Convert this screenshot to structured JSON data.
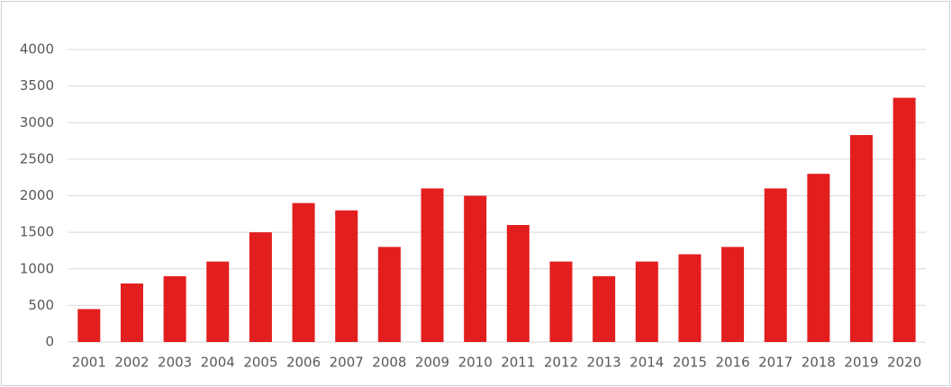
{
  "chart_data": {
    "type": "bar",
    "categories": [
      "2001",
      "2002",
      "2003",
      "2004",
      "2005",
      "2006",
      "2007",
      "2008",
      "2009",
      "2010",
      "2011",
      "2012",
      "2013",
      "2014",
      "2015",
      "2016",
      "2017",
      "2018",
      "2019",
      "2020"
    ],
    "values": [
      450,
      800,
      900,
      1100,
      1500,
      1900,
      1800,
      1300,
      2100,
      2000,
      1600,
      1100,
      900,
      1100,
      1200,
      1300,
      2100,
      2300,
      2830,
      3340
    ],
    "color": "#e31e1e",
    "ylim": [
      0,
      4000
    ],
    "yticks": [
      0,
      500,
      1000,
      1500,
      2000,
      2500,
      3000,
      3500,
      4000
    ],
    "grid": true
  }
}
